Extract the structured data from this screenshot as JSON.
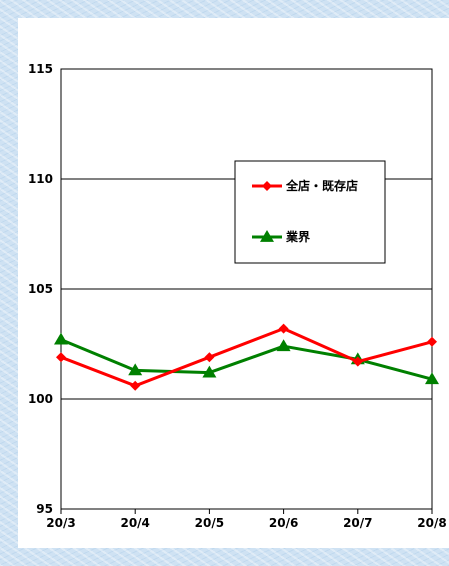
{
  "chart_data": {
    "type": "line",
    "categories": [
      "20/3",
      "20/4",
      "20/5",
      "20/6",
      "20/7",
      "20/8"
    ],
    "series": [
      {
        "name": "全店・既存店",
        "values": [
          101.9,
          100.6,
          101.9,
          103.2,
          101.7,
          102.6
        ],
        "color": "#ff0000",
        "marker": "diamond"
      },
      {
        "name": "業界",
        "values": [
          102.7,
          101.3,
          101.2,
          102.4,
          101.8,
          100.9
        ],
        "color": "#008000",
        "marker": "triangle"
      }
    ],
    "yticks": [
      95,
      100,
      105,
      110,
      115
    ],
    "ylim": [
      95,
      115
    ],
    "grid": true,
    "legend_position": "upper-right"
  }
}
